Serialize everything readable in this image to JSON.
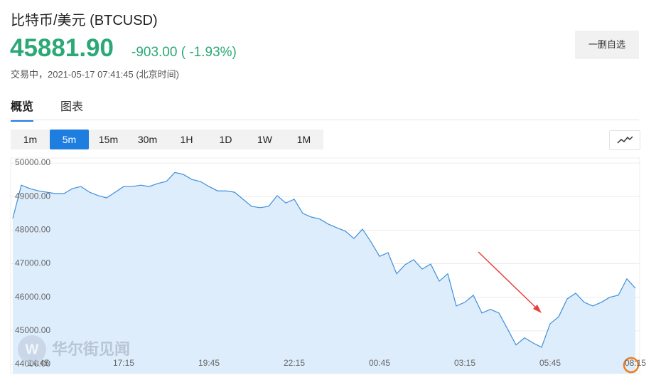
{
  "header": {
    "title": "比特币/美元 (BTCUSD)",
    "price": "45881.90",
    "change": "-903.00 ( -1.93%)",
    "status": "交易中，2021-05-17 07:41:45 (北京时间)",
    "button": "一删自选"
  },
  "tabs": [
    "概览",
    "图表"
  ],
  "periods": [
    "1m",
    "5m",
    "15m",
    "30m",
    "1H",
    "1D",
    "1W",
    "1M"
  ],
  "watermark": "华尔街见闻",
  "chart_data": {
    "type": "area",
    "categories": [
      null,
      null,
      null,
      "14:45",
      null,
      null,
      null,
      null,
      null,
      null,
      null,
      null,
      null,
      "17:15",
      null,
      null,
      null,
      null,
      null,
      null,
      null,
      null,
      null,
      "19:45",
      null,
      null,
      null,
      null,
      null,
      null,
      null,
      null,
      null,
      "22:15",
      null,
      null,
      null,
      null,
      null,
      null,
      null,
      null,
      null,
      "00:45",
      null,
      null,
      null,
      null,
      null,
      null,
      null,
      null,
      null,
      "03:15",
      null,
      null,
      null,
      null,
      null,
      null,
      null,
      null,
      null,
      "05:45",
      null,
      null,
      null,
      null,
      null,
      null,
      null,
      null,
      null,
      "08:15"
    ],
    "series": [
      {
        "color": "#3d8fdb",
        "values": [
          48350,
          49340,
          49240,
          49170,
          49130,
          49090,
          49090,
          49240,
          49300,
          49130,
          49030,
          48960,
          49130,
          49300,
          49300,
          49340,
          49300,
          49390,
          49450,
          49720,
          49660,
          49510,
          49450,
          49300,
          49170,
          49170,
          49130,
          48920,
          48710,
          48670,
          48710,
          49030,
          48810,
          48920,
          48500,
          48390,
          48330,
          48180,
          48070,
          47970,
          47750,
          48030,
          47650,
          47220,
          47330,
          46700,
          46970,
          47120,
          46840,
          46990,
          46480,
          46700,
          45740,
          45850,
          46060,
          45530,
          45640,
          45530,
          45060,
          44580,
          44790,
          44640,
          44510,
          45210,
          45420,
          45950,
          46120,
          45850,
          45740,
          45850,
          46000,
          46060,
          46550,
          46270
        ]
      }
    ],
    "ylim": [
      43725,
      50150
    ],
    "yticks": [
      {
        "value": 44000,
        "label": "44000.00"
      },
      {
        "value": 45000,
        "label": "45000.00"
      },
      {
        "value": 46000,
        "label": "46000.00"
      },
      {
        "value": 47000,
        "label": "47000.00"
      },
      {
        "value": 48000,
        "label": "48000.00"
      },
      {
        "value": 49000,
        "label": "49000.00"
      },
      {
        "value": 50000,
        "label": "50000.00"
      }
    ],
    "grid": true
  }
}
